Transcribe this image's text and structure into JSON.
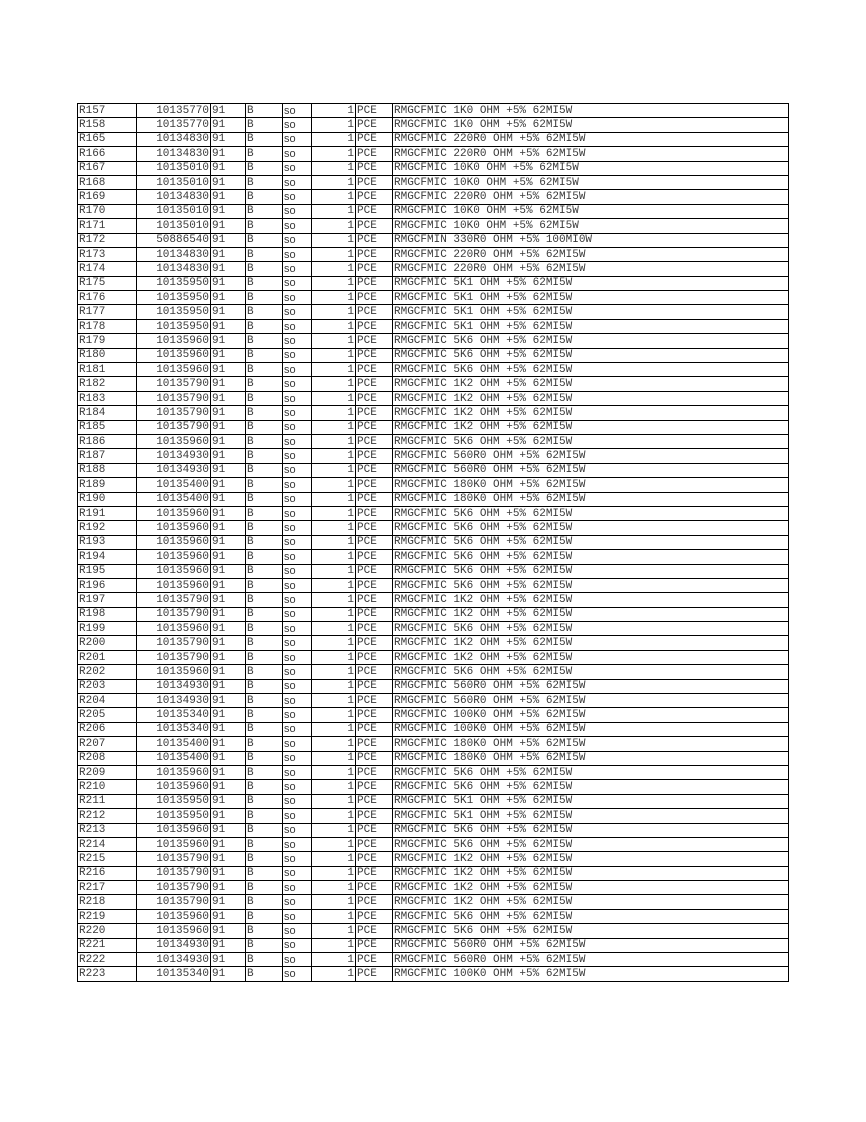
{
  "table": {
    "rows": [
      [
        "R157",
        "10135770",
        "91",
        "B",
        "so",
        "1",
        "PCE",
        "RMGCFMIC 1K0 OHM +5% 62MI5W"
      ],
      [
        "R158",
        "10135770",
        "91",
        "B",
        "so",
        "1",
        "PCE",
        "RMGCFMIC 1K0 OHM +5% 62MI5W"
      ],
      [
        "R165",
        "10134830",
        "91",
        "B",
        "so",
        "1",
        "PCE",
        "RMGCFMIC 220R0 OHM +5% 62MI5W"
      ],
      [
        "R166",
        "10134830",
        "91",
        "B",
        "so",
        "1",
        "PCE",
        "RMGCFMIC 220R0 OHM +5% 62MI5W"
      ],
      [
        "R167",
        "10135010",
        "91",
        "B",
        "so",
        "1",
        "PCE",
        "RMGCFMIC 10K0 OHM +5% 62MI5W"
      ],
      [
        "R168",
        "10135010",
        "91",
        "B",
        "so",
        "1",
        "PCE",
        "RMGCFMIC 10K0 OHM +5% 62MI5W"
      ],
      [
        "R169",
        "10134830",
        "91",
        "B",
        "so",
        "1",
        "PCE",
        "RMGCFMIC 220R0 OHM +5% 62MI5W"
      ],
      [
        "R170",
        "10135010",
        "91",
        "B",
        "so",
        "1",
        "PCE",
        "RMGCFMIC 10K0 OHM +5% 62MI5W"
      ],
      [
        "R171",
        "10135010",
        "91",
        "B",
        "so",
        "1",
        "PCE",
        "RMGCFMIC 10K0 OHM +5% 62MI5W"
      ],
      [
        "R172",
        "50886540",
        "91",
        "B",
        "so",
        "1",
        "PCE",
        "RMGCFMIN 330R0 OHM +5% 100MI0W"
      ],
      [
        "R173",
        "10134830",
        "91",
        "B",
        "so",
        "1",
        "PCE",
        "RMGCFMIC 220R0 OHM +5% 62MI5W"
      ],
      [
        "R174",
        "10134830",
        "91",
        "B",
        "so",
        "1",
        "PCE",
        "RMGCFMIC 220R0 OHM +5% 62MI5W"
      ],
      [
        "R175",
        "10135950",
        "91",
        "B",
        "so",
        "1",
        "PCE",
        "RMGCFMIC 5K1 OHM +5% 62MI5W"
      ],
      [
        "R176",
        "10135950",
        "91",
        "B",
        "so",
        "1",
        "PCE",
        "RMGCFMIC 5K1 OHM +5% 62MI5W"
      ],
      [
        "R177",
        "10135950",
        "91",
        "B",
        "so",
        "1",
        "PCE",
        "RMGCFMIC 5K1 OHM +5% 62MI5W"
      ],
      [
        "R178",
        "10135950",
        "91",
        "B",
        "so",
        "1",
        "PCE",
        "RMGCFMIC 5K1 OHM +5% 62MI5W"
      ],
      [
        "R179",
        "10135960",
        "91",
        "B",
        "so",
        "1",
        "PCE",
        "RMGCFMIC 5K6 OHM +5% 62MI5W"
      ],
      [
        "R180",
        "10135960",
        "91",
        "B",
        "so",
        "1",
        "PCE",
        "RMGCFMIC 5K6 OHM +5% 62MI5W"
      ],
      [
        "R181",
        "10135960",
        "91",
        "B",
        "so",
        "1",
        "PCE",
        "RMGCFMIC 5K6 OHM +5% 62MI5W"
      ],
      [
        "R182",
        "10135790",
        "91",
        "B",
        "so",
        "1",
        "PCE",
        "RMGCFMIC 1K2 OHM +5% 62MI5W"
      ],
      [
        "R183",
        "10135790",
        "91",
        "B",
        "so",
        "1",
        "PCE",
        "RMGCFMIC 1K2 OHM +5% 62MI5W"
      ],
      [
        "R184",
        "10135790",
        "91",
        "B",
        "so",
        "1",
        "PCE",
        "RMGCFMIC 1K2 OHM +5% 62MI5W"
      ],
      [
        "R185",
        "10135790",
        "91",
        "B",
        "so",
        "1",
        "PCE",
        "RMGCFMIC 1K2 OHM +5% 62MI5W"
      ],
      [
        "R186",
        "10135960",
        "91",
        "B",
        "so",
        "1",
        "PCE",
        "RMGCFMIC 5K6 OHM +5% 62MI5W"
      ],
      [
        "R187",
        "10134930",
        "91",
        "B",
        "so",
        "1",
        "PCE",
        "RMGCFMIC 560R0 OHM +5% 62MI5W"
      ],
      [
        "R188",
        "10134930",
        "91",
        "B",
        "so",
        "1",
        "PCE",
        "RMGCFMIC 560R0 OHM +5% 62MI5W"
      ],
      [
        "R189",
        "10135400",
        "91",
        "B",
        "so",
        "1",
        "PCE",
        "RMGCFMIC 180K0 OHM +5% 62MI5W"
      ],
      [
        "R190",
        "10135400",
        "91",
        "B",
        "so",
        "1",
        "PCE",
        "RMGCFMIC 180K0 OHM +5% 62MI5W"
      ],
      [
        "R191",
        "10135960",
        "91",
        "B",
        "so",
        "1",
        "PCE",
        "RMGCFMIC 5K6 OHM +5% 62MI5W"
      ],
      [
        "R192",
        "10135960",
        "91",
        "B",
        "so",
        "1",
        "PCE",
        "RMGCFMIC 5K6 OHM +5% 62MI5W"
      ],
      [
        "R193",
        "10135960",
        "91",
        "B",
        "so",
        "1",
        "PCE",
        "RMGCFMIC 5K6 OHM +5% 62MI5W"
      ],
      [
        "R194",
        "10135960",
        "91",
        "B",
        "so",
        "1",
        "PCE",
        "RMGCFMIC 5K6 OHM +5% 62MI5W"
      ],
      [
        "R195",
        "10135960",
        "91",
        "B",
        "so",
        "1",
        "PCE",
        "RMGCFMIC 5K6 OHM +5% 62MI5W"
      ],
      [
        "R196",
        "10135960",
        "91",
        "B",
        "so",
        "1",
        "PCE",
        "RMGCFMIC 5K6 OHM +5% 62MI5W"
      ],
      [
        "R197",
        "10135790",
        "91",
        "B",
        "so",
        "1",
        "PCE",
        "RMGCFMIC 1K2 OHM +5% 62MI5W"
      ],
      [
        "R198",
        "10135790",
        "91",
        "B",
        "so",
        "1",
        "PCE",
        "RMGCFMIC 1K2 OHM +5% 62MI5W"
      ],
      [
        "R199",
        "10135960",
        "91",
        "B",
        "so",
        "1",
        "PCE",
        "RMGCFMIC 5K6 OHM +5% 62MI5W"
      ],
      [
        "R200",
        "10135790",
        "91",
        "B",
        "so",
        "1",
        "PCE",
        "RMGCFMIC 1K2 OHM +5% 62MI5W"
      ],
      [
        "R201",
        "10135790",
        "91",
        "B",
        "so",
        "1",
        "PCE",
        "RMGCFMIC 1K2 OHM +5% 62MI5W"
      ],
      [
        "R202",
        "10135960",
        "91",
        "B",
        "so",
        "1",
        "PCE",
        "RMGCFMIC 5K6 OHM +5% 62MI5W"
      ],
      [
        "R203",
        "10134930",
        "91",
        "B",
        "so",
        "1",
        "PCE",
        "RMGCFMIC 560R0 OHM +5% 62MI5W"
      ],
      [
        "R204",
        "10134930",
        "91",
        "B",
        "so",
        "1",
        "PCE",
        "RMGCFMIC 560R0 OHM +5% 62MI5W"
      ],
      [
        "R205",
        "10135340",
        "91",
        "B",
        "so",
        "1",
        "PCE",
        "RMGCFMIC 100K0 OHM +5% 62MI5W"
      ],
      [
        "R206",
        "10135340",
        "91",
        "B",
        "so",
        "1",
        "PCE",
        "RMGCFMIC 100K0 OHM +5% 62MI5W"
      ],
      [
        "R207",
        "10135400",
        "91",
        "B",
        "so",
        "1",
        "PCE",
        "RMGCFMIC 180K0 OHM +5% 62MI5W"
      ],
      [
        "R208",
        "10135400",
        "91",
        "B",
        "so",
        "1",
        "PCE",
        "RMGCFMIC 180K0 OHM +5% 62MI5W"
      ],
      [
        "R209",
        "10135960",
        "91",
        "B",
        "so",
        "1",
        "PCE",
        "RMGCFMIC 5K6 OHM +5% 62MI5W"
      ],
      [
        "R210",
        "10135960",
        "91",
        "B",
        "so",
        "1",
        "PCE",
        "RMGCFMIC 5K6 OHM +5% 62MI5W"
      ],
      [
        "R211",
        "10135950",
        "91",
        "B",
        "so",
        "1",
        "PCE",
        "RMGCFMIC 5K1 OHM +5% 62MI5W"
      ],
      [
        "R212",
        "10135950",
        "91",
        "B",
        "so",
        "1",
        "PCE",
        "RMGCFMIC 5K1 OHM +5% 62MI5W"
      ],
      [
        "R213",
        "10135960",
        "91",
        "B",
        "so",
        "1",
        "PCE",
        "RMGCFMIC 5K6 OHM +5% 62MI5W"
      ],
      [
        "R214",
        "10135960",
        "91",
        "B",
        "so",
        "1",
        "PCE",
        "RMGCFMIC 5K6 OHM +5% 62MI5W"
      ],
      [
        "R215",
        "10135790",
        "91",
        "B",
        "so",
        "1",
        "PCE",
        "RMGCFMIC 1K2 OHM +5% 62MI5W"
      ],
      [
        "R216",
        "10135790",
        "91",
        "B",
        "so",
        "1",
        "PCE",
        "RMGCFMIC 1K2 OHM +5% 62MI5W"
      ],
      [
        "R217",
        "10135790",
        "91",
        "B",
        "so",
        "1",
        "PCE",
        "RMGCFMIC 1K2 OHM +5% 62MI5W"
      ],
      [
        "R218",
        "10135790",
        "91",
        "B",
        "so",
        "1",
        "PCE",
        "RMGCFMIC 1K2 OHM +5% 62MI5W"
      ],
      [
        "R219",
        "10135960",
        "91",
        "B",
        "so",
        "1",
        "PCE",
        "RMGCFMIC 5K6 OHM +5% 62MI5W"
      ],
      [
        "R220",
        "10135960",
        "91",
        "B",
        "so",
        "1",
        "PCE",
        "RMGCFMIC 5K6 OHM +5% 62MI5W"
      ],
      [
        "R221",
        "10134930",
        "91",
        "B",
        "so",
        "1",
        "PCE",
        "RMGCFMIC 560R0 OHM +5% 62MI5W"
      ],
      [
        "R222",
        "10134930",
        "91",
        "B",
        "so",
        "1",
        "PCE",
        "RMGCFMIC 560R0 OHM +5% 62MI5W"
      ],
      [
        "R223",
        "10135340",
        "91",
        "B",
        "so",
        "1",
        "PCE",
        "RMGCFMIC 100K0 OHM +5% 62MI5W"
      ]
    ]
  }
}
